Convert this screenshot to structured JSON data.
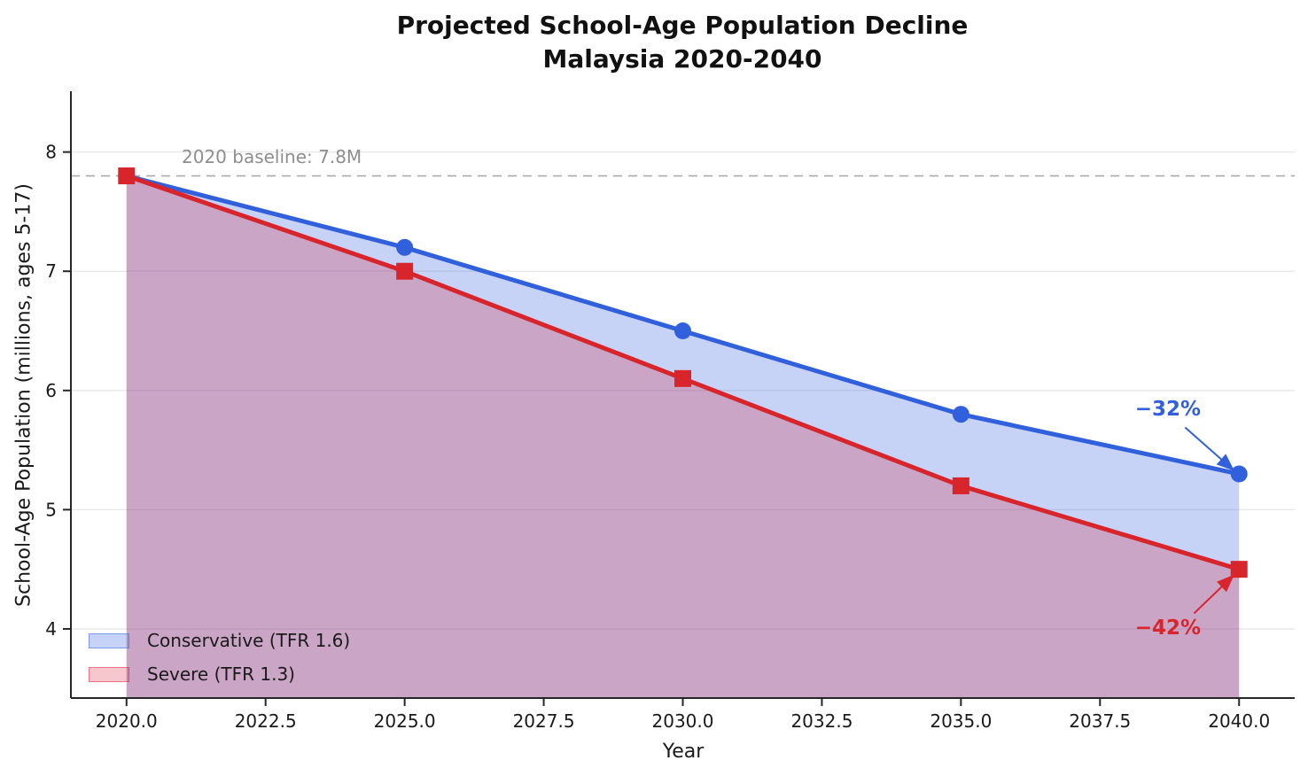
{
  "title": {
    "line1": "Projected School-Age Population Decline",
    "line2": "Malaysia 2020-2040"
  },
  "axes": {
    "xlabel": "Year",
    "ylabel": "School-Age Population (millions, ages 5-17)",
    "x_tick_labels": [
      "2020.0",
      "2022.5",
      "2025.0",
      "2027.5",
      "2030.0",
      "2032.5",
      "2035.0",
      "2037.5",
      "2040.0"
    ],
    "y_tick_labels": [
      "4",
      "5",
      "6",
      "7",
      "8"
    ]
  },
  "chart_data": {
    "type": "line",
    "title": "Projected School-Age Population Decline Malaysia 2020-2040",
    "xlabel": "Year",
    "ylabel": "School-Age Population (millions, ages 5-17)",
    "x": [
      2020,
      2025,
      2030,
      2035,
      2040
    ],
    "series": [
      {
        "name": "Conservative (TFR 1.6)",
        "values": [
          7.8,
          7.2,
          6.5,
          5.8,
          5.3
        ],
        "color": "#3160DD",
        "fill": "rgba(65,105,225,0.30)",
        "swatch_border": "rgba(65,105,225,0.55)",
        "marker": "circle"
      },
      {
        "name": "Severe (TFR 1.3)",
        "values": [
          7.8,
          7.0,
          6.1,
          5.2,
          4.5
        ],
        "color": "#D8252C",
        "fill": "rgba(219,32,57,0.25)",
        "swatch_border": "rgba(219,32,57,0.50)",
        "marker": "square"
      }
    ],
    "x_ticks": [
      2020.0,
      2022.5,
      2025.0,
      2027.5,
      2030.0,
      2032.5,
      2035.0,
      2037.5,
      2040.0
    ],
    "y_ticks": [
      4,
      5,
      6,
      7,
      8
    ],
    "xlim": [
      2019.0,
      2041.0
    ],
    "ylim": [
      3.42,
      8.51
    ],
    "grid": "horizontal",
    "legend_position": "lower-left",
    "baseline": {
      "value": 7.8,
      "label": "2020 baseline: 7.8M",
      "label_color": "#8e8e8e",
      "line_color": "#ababab"
    },
    "annotations": [
      {
        "text": "−32%",
        "color": "#3160DD",
        "text_x": 2038.72,
        "text_y": 5.84,
        "arrow_from_x": 2039.03,
        "arrow_from_y": 5.69,
        "arrow_to_x": 2039.88,
        "arrow_to_y": 5.34
      },
      {
        "text": "−42%",
        "color": "#D8252C",
        "text_x": 2038.72,
        "text_y": 4.01,
        "arrow_from_x": 2039.19,
        "arrow_from_y": 4.13,
        "arrow_to_x": 2039.88,
        "arrow_to_y": 4.44
      }
    ]
  }
}
